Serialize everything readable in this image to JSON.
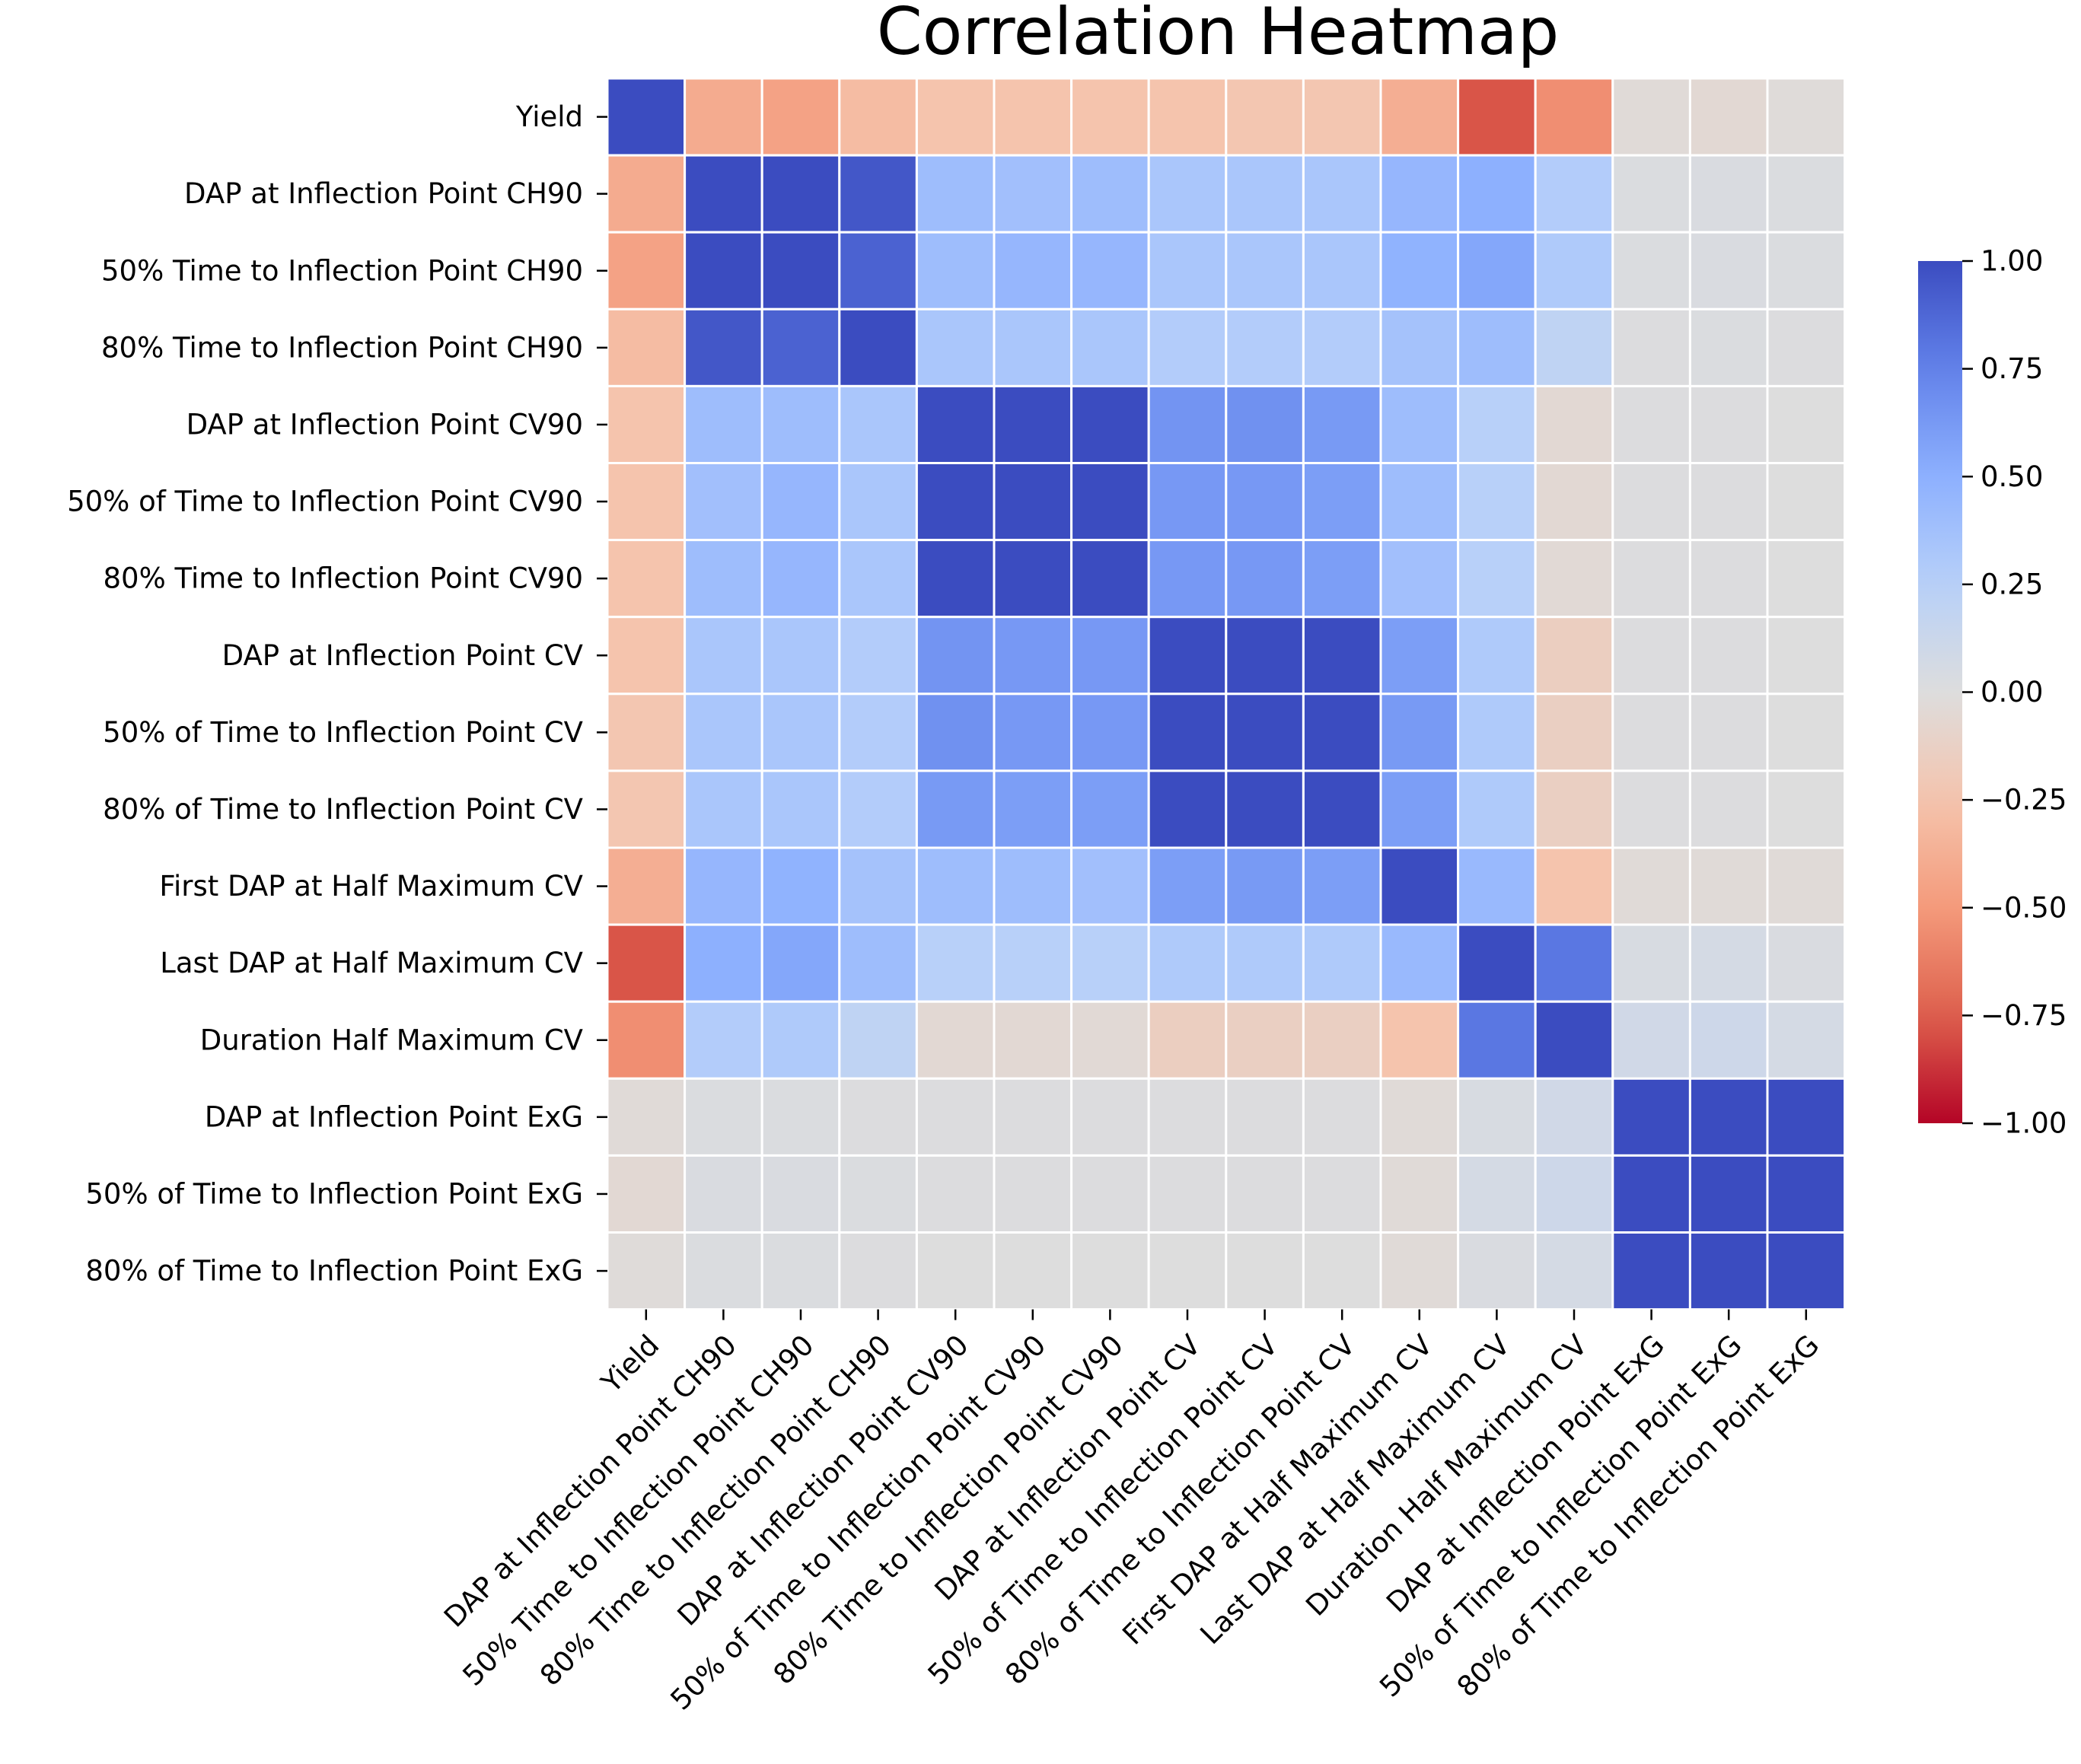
{
  "chart_data": {
    "type": "heatmap",
    "title": "Correlation Heatmap",
    "xlabel": "",
    "ylabel": "",
    "labels": [
      "Yield",
      "DAP at Inflection Point CH90",
      "50% Time to Inflection Point CH90",
      "80% Time to Inflection Point CH90",
      "DAP at Inflection Point CV90",
      "50% of Time to Inflection Point CV90",
      "80% Time to Inflection Point CV90",
      "DAP at Inflection Point CV",
      "50% of Time to Inflection Point CV",
      "80% of Time to Inflection Point CV",
      "First DAP at Half Maximum CV",
      "Last DAP at Half Maximum CV",
      "Duration Half Maximum CV",
      "DAP at Inflection Point ExG",
      "50% of Time to Inflection Point ExG",
      "80% of Time to Inflection Point ExG"
    ],
    "matrix": [
      [
        1.0,
        -0.4,
        -0.45,
        -0.3,
        -0.25,
        -0.25,
        -0.25,
        -0.25,
        -0.23,
        -0.23,
        -0.38,
        -0.78,
        -0.55,
        -0.03,
        -0.05,
        -0.02
      ],
      [
        -0.4,
        1.0,
        1.0,
        0.95,
        0.4,
        0.38,
        0.4,
        0.33,
        0.33,
        0.33,
        0.45,
        0.5,
        0.28,
        0.02,
        0.03,
        0.02
      ],
      [
        -0.45,
        1.0,
        1.0,
        0.9,
        0.4,
        0.45,
        0.45,
        0.33,
        0.33,
        0.33,
        0.48,
        0.55,
        0.3,
        0.02,
        0.03,
        0.02
      ],
      [
        -0.3,
        0.95,
        0.9,
        1.0,
        0.33,
        0.33,
        0.33,
        0.28,
        0.28,
        0.28,
        0.36,
        0.4,
        0.2,
        0.01,
        0.02,
        0.01
      ],
      [
        -0.25,
        0.4,
        0.4,
        0.33,
        1.0,
        1.0,
        1.0,
        0.65,
        0.67,
        0.62,
        0.4,
        0.25,
        -0.05,
        0.01,
        0.01,
        0.0
      ],
      [
        -0.25,
        0.38,
        0.45,
        0.33,
        1.0,
        1.0,
        1.0,
        0.63,
        0.63,
        0.6,
        0.4,
        0.25,
        -0.05,
        0.01,
        0.01,
        0.0
      ],
      [
        -0.25,
        0.4,
        0.45,
        0.33,
        1.0,
        1.0,
        1.0,
        0.63,
        0.63,
        0.6,
        0.38,
        0.25,
        -0.04,
        0.01,
        0.01,
        0.0
      ],
      [
        -0.25,
        0.33,
        0.33,
        0.28,
        0.65,
        0.63,
        0.63,
        1.0,
        1.0,
        1.0,
        0.6,
        0.3,
        -0.15,
        0.01,
        0.01,
        0.0
      ],
      [
        -0.23,
        0.33,
        0.33,
        0.28,
        0.67,
        0.63,
        0.63,
        1.0,
        1.0,
        1.0,
        0.62,
        0.3,
        -0.14,
        0.01,
        0.01,
        0.0
      ],
      [
        -0.23,
        0.33,
        0.33,
        0.28,
        0.62,
        0.6,
        0.6,
        1.0,
        1.0,
        1.0,
        0.6,
        0.3,
        -0.14,
        0.01,
        0.01,
        0.0
      ],
      [
        -0.38,
        0.45,
        0.48,
        0.36,
        0.4,
        0.4,
        0.38,
        0.6,
        0.62,
        0.6,
        1.0,
        0.43,
        -0.25,
        -0.03,
        -0.03,
        -0.03
      ],
      [
        -0.78,
        0.5,
        0.55,
        0.4,
        0.25,
        0.25,
        0.25,
        0.3,
        0.3,
        0.3,
        0.43,
        1.0,
        0.8,
        0.04,
        0.06,
        0.03
      ],
      [
        -0.55,
        0.28,
        0.3,
        0.2,
        -0.05,
        -0.05,
        -0.04,
        -0.15,
        -0.14,
        -0.14,
        -0.25,
        0.8,
        1.0,
        0.09,
        0.11,
        0.06
      ],
      [
        -0.03,
        0.02,
        0.02,
        0.01,
        0.01,
        0.01,
        0.01,
        0.01,
        0.01,
        0.01,
        -0.03,
        0.04,
        0.09,
        1.0,
        1.0,
        1.0
      ],
      [
        -0.05,
        0.03,
        0.03,
        0.02,
        0.01,
        0.01,
        0.01,
        0.01,
        0.01,
        0.01,
        -0.03,
        0.06,
        0.11,
        1.0,
        1.0,
        1.0
      ],
      [
        -0.02,
        0.02,
        0.02,
        0.01,
        0.0,
        0.0,
        0.0,
        0.0,
        0.0,
        0.0,
        -0.03,
        0.03,
        0.06,
        1.0,
        1.0,
        1.0
      ]
    ],
    "colormap": "coolwarm",
    "colormap_orientation": "-1 red, +1 blue",
    "vmin": -1.0,
    "vmax": 1.0,
    "colorbar_ticks": [
      1.0,
      0.75,
      0.5,
      0.25,
      0.0,
      -0.25,
      -0.5,
      -0.75,
      -1.0
    ],
    "colorbar_tick_labels": [
      "1.00",
      "0.75",
      "0.50",
      "0.25",
      "0.00",
      "−0.25",
      "−0.50",
      "−0.75",
      "−1.00"
    ],
    "grid": true,
    "colorbar_position": "right"
  }
}
